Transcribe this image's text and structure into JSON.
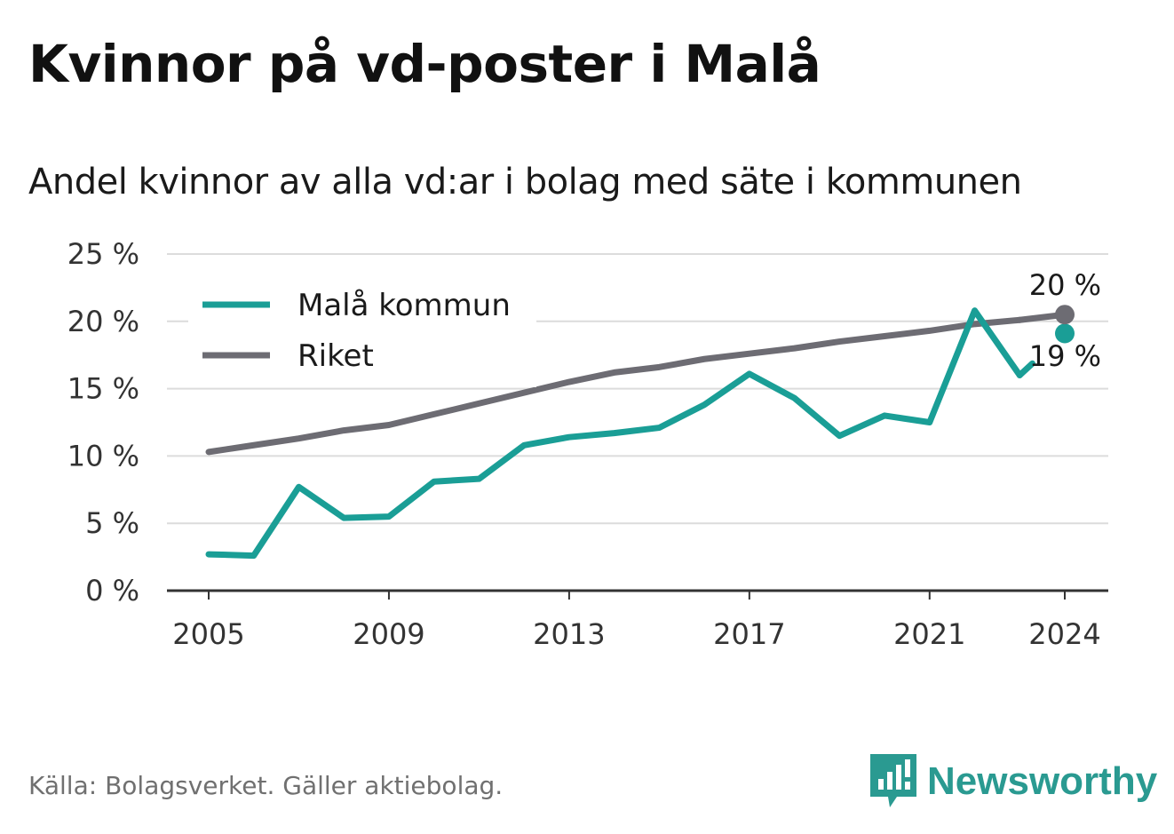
{
  "title": "Kvinnor på vd-poster i Malå",
  "subtitle": "Andel kvinnor av alla vd:ar i bolag med säte i kommunen",
  "source": "Källa: Bolagsverket. Gäller aktiebolag.",
  "brand": {
    "name": "Newsworthy",
    "icon": "newsworthy-logo-icon",
    "color": "#2a9a91"
  },
  "chart_data": {
    "type": "line",
    "x": [
      2005,
      2006,
      2007,
      2008,
      2009,
      2010,
      2011,
      2012,
      2013,
      2014,
      2015,
      2016,
      2017,
      2018,
      2019,
      2020,
      2021,
      2022,
      2023,
      2024
    ],
    "x_ticks": [
      2005,
      2009,
      2013,
      2017,
      2021,
      2024
    ],
    "x_tick_labels": [
      "2005",
      "2009",
      "2013",
      "2017",
      "2021",
      "2024"
    ],
    "y_ticks": [
      0,
      5,
      10,
      15,
      20,
      25
    ],
    "y_tick_labels": [
      "0 %",
      "5 %",
      "10 %",
      "15 %",
      "20 %",
      "25 %"
    ],
    "ylim": [
      0,
      25
    ],
    "grid": true,
    "legend": "top-left",
    "series": [
      {
        "name": "Malå kommun",
        "color": "#1a9e96",
        "values": [
          2.7,
          2.6,
          7.7,
          5.4,
          5.5,
          8.1,
          8.3,
          10.8,
          11.4,
          11.7,
          12.1,
          13.8,
          16.1,
          14.3,
          11.5,
          13.0,
          12.5,
          20.8,
          16.0,
          19.1
        ],
        "end_label": "19 %"
      },
      {
        "name": "Riket",
        "color": "#6d6c73",
        "values": [
          10.3,
          10.8,
          11.3,
          11.9,
          12.3,
          13.1,
          13.9,
          14.7,
          15.5,
          16.2,
          16.6,
          17.2,
          17.6,
          18.0,
          18.5,
          18.9,
          19.3,
          19.8,
          20.1,
          20.5
        ],
        "end_label": "20 %"
      }
    ]
  }
}
